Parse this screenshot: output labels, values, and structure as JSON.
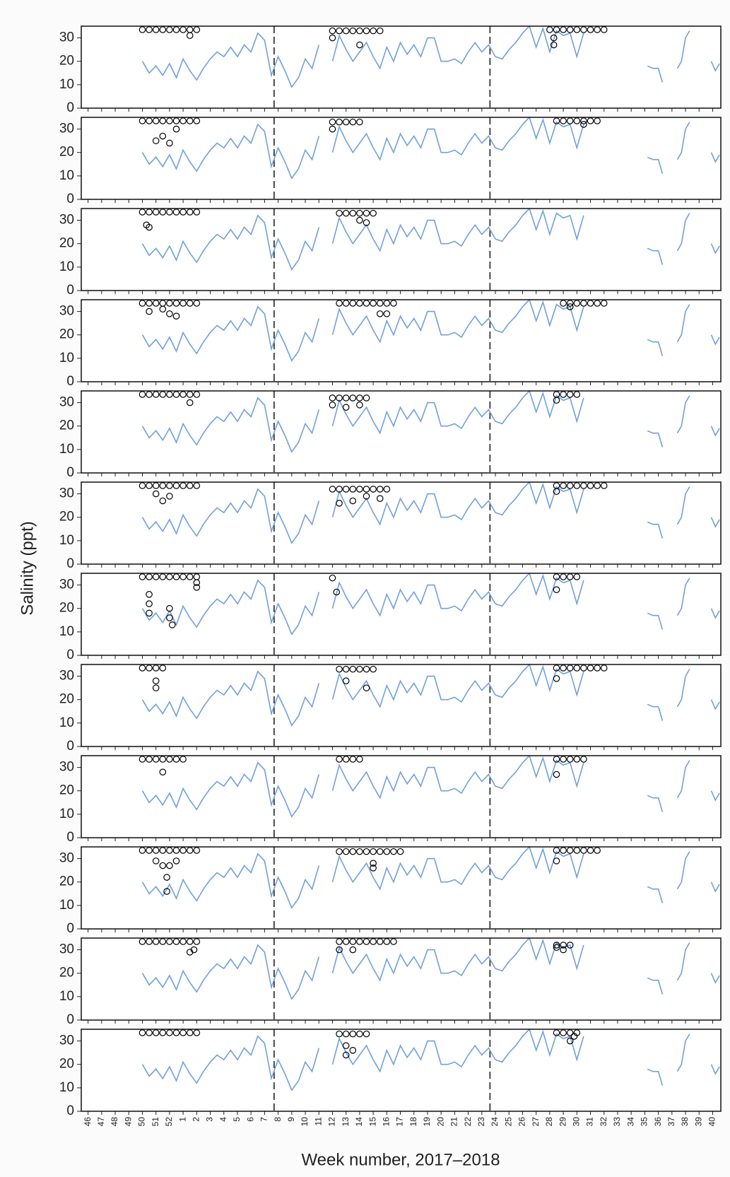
{
  "chart_data": {
    "type": "line",
    "y_label": "Salinity (ppt)",
    "x_label": "Week number, 2017–2018",
    "xlim": [
      45.5,
      92.6
    ],
    "ylim": [
      0,
      35
    ],
    "yticks": [
      0,
      10,
      20,
      30
    ],
    "xticks": [
      46,
      47,
      48,
      49,
      50,
      51,
      52,
      {
        "value": 53,
        "label": "1"
      },
      {
        "value": 54,
        "label": "2"
      },
      {
        "value": 55,
        "label": "3"
      },
      {
        "value": 56,
        "label": "4"
      },
      {
        "value": 57,
        "label": "5"
      },
      {
        "value": 58,
        "label": "6"
      },
      {
        "value": 59,
        "label": "7"
      },
      {
        "value": 60,
        "label": "8"
      },
      {
        "value": 61,
        "label": "9"
      },
      {
        "value": 62,
        "label": "10"
      },
      {
        "value": 63,
        "label": "11"
      },
      {
        "value": 64,
        "label": "12"
      },
      {
        "value": 65,
        "label": "13"
      },
      {
        "value": 66,
        "label": "14"
      },
      {
        "value": 67,
        "label": "15"
      },
      {
        "value": 68,
        "label": "16"
      },
      {
        "value": 69,
        "label": "17"
      },
      {
        "value": 70,
        "label": "18"
      },
      {
        "value": 71,
        "label": "19"
      },
      {
        "value": 72,
        "label": "20"
      },
      {
        "value": 73,
        "label": "21"
      },
      {
        "value": 74,
        "label": "22"
      },
      {
        "value": 75,
        "label": "23"
      },
      {
        "value": 76,
        "label": "24"
      },
      {
        "value": 77,
        "label": "25"
      },
      {
        "value": 78,
        "label": "26"
      },
      {
        "value": 79,
        "label": "27"
      },
      {
        "value": 80,
        "label": "28"
      },
      {
        "value": 81,
        "label": "29"
      },
      {
        "value": 82,
        "label": "30"
      },
      {
        "value": 83,
        "label": "31"
      },
      {
        "value": 84,
        "label": "32"
      },
      {
        "value": 85,
        "label": "33"
      },
      {
        "value": 86,
        "label": "34"
      },
      {
        "value": 87,
        "label": "35"
      },
      {
        "value": 88,
        "label": "36"
      },
      {
        "value": 89,
        "label": "37"
      },
      {
        "value": 90,
        "label": "38"
      },
      {
        "value": 91,
        "label": "39"
      },
      {
        "value": 92,
        "label": "40"
      }
    ],
    "reference_lines": [
      59.7,
      75.6
    ],
    "line": {
      "color": "#6fa0de",
      "x": [
        50,
        50.5,
        51,
        51.5,
        52,
        52.5,
        53,
        53.5,
        54,
        54.5,
        55,
        55.5,
        56,
        56.5,
        57,
        57.5,
        58,
        58.5,
        59,
        59.5,
        60,
        60.5,
        61,
        61.5,
        62,
        62.5,
        63,
        63.5,
        64,
        64.5,
        65,
        65.5,
        66,
        66.5,
        67,
        67.5,
        68,
        68.5,
        69,
        69.5,
        70,
        70.5,
        71,
        71.5,
        72,
        72.5,
        73,
        73.5,
        74,
        74.5,
        75,
        75.5,
        76,
        76.5,
        77,
        77.5,
        78,
        78.5,
        79,
        79.5,
        80,
        80.5,
        81,
        81.5,
        82,
        82.5,
        83,
        87.2,
        87.6,
        88,
        88.3,
        88.8,
        89.4,
        89.7,
        90,
        90.3,
        91,
        91.9,
        92.2,
        92.5
      ],
      "values": [
        20,
        15,
        18,
        14,
        19,
        13,
        21,
        16,
        12,
        17,
        21,
        24,
        22,
        26,
        22,
        27,
        24,
        32,
        29,
        14,
        22,
        16,
        9,
        13,
        21,
        17,
        27,
        null,
        20,
        31,
        25,
        20,
        24,
        28,
        22,
        17,
        26,
        20,
        28,
        23,
        27,
        22,
        30,
        30,
        20,
        20,
        21,
        19,
        24,
        28,
        24,
        27,
        22,
        21,
        25,
        28,
        32,
        35,
        26,
        34,
        24,
        33,
        31,
        32,
        22,
        32,
        null,
        18,
        17,
        17,
        11,
        null,
        17,
        20,
        30,
        33,
        null,
        20,
        16,
        19
      ]
    },
    "point_color": "#000000",
    "panels": [
      {
        "x": [
          50,
          50.5,
          51,
          51.5,
          52,
          52.5,
          53,
          53.5,
          54,
          53.5,
          64,
          64.5,
          65,
          65.5,
          66,
          66.5,
          67,
          67.5,
          64,
          66,
          80,
          80.5,
          81,
          81.5,
          82,
          82.5,
          83,
          83.5,
          84,
          80.3,
          80.3
        ],
        "y": [
          33.5,
          33.5,
          33.5,
          33.5,
          33.5,
          33.5,
          33.5,
          33.5,
          33.5,
          31,
          33,
          33,
          33,
          33,
          33,
          33,
          33,
          33,
          30,
          27,
          33.5,
          33.5,
          33.5,
          33.5,
          33.5,
          33.5,
          33.5,
          33.5,
          33.5,
          27,
          30
        ]
      },
      {
        "x": [
          50,
          50.5,
          51,
          51.5,
          52,
          52.5,
          53,
          53.5,
          54,
          51,
          51.5,
          52,
          52.5,
          64,
          64.5,
          65,
          65.5,
          66,
          64,
          80.5,
          81,
          81.5,
          82,
          82.5,
          83,
          83.5,
          82.5
        ],
        "y": [
          33.5,
          33.5,
          33.5,
          33.5,
          33.5,
          33.5,
          33.5,
          33.5,
          33.5,
          25,
          27,
          24,
          30,
          33,
          33,
          33,
          33,
          33,
          30,
          33.5,
          33.5,
          33.5,
          33.5,
          33.5,
          33.5,
          33.5,
          32
        ]
      },
      {
        "x": [
          50,
          50.5,
          51,
          51.5,
          52,
          52.5,
          53,
          53.5,
          54,
          50.3,
          50.5,
          64.5,
          65,
          65.5,
          66,
          66.5,
          67,
          66,
          66.5
        ],
        "y": [
          33.5,
          33.5,
          33.5,
          33.5,
          33.5,
          33.5,
          33.5,
          33.5,
          33.5,
          28,
          27,
          33,
          33,
          33,
          33,
          33,
          33,
          30,
          29
        ]
      },
      {
        "x": [
          50,
          50.5,
          51,
          51.5,
          52,
          52.5,
          53,
          53.5,
          54,
          50.5,
          51.5,
          52,
          52.5,
          64.5,
          65,
          65.5,
          66,
          66.5,
          67,
          67.5,
          68,
          68.5,
          67.5,
          68,
          81,
          81.5,
          82,
          82.5,
          83,
          83.5,
          84,
          81.5
        ],
        "y": [
          33.5,
          33.5,
          33.5,
          33.5,
          33.5,
          33.5,
          33.5,
          33.5,
          33.5,
          30,
          31,
          29,
          28,
          33.5,
          33.5,
          33.5,
          33.5,
          33.5,
          33.5,
          33.5,
          33.5,
          33.5,
          29,
          29,
          33.5,
          33.5,
          33.5,
          33.5,
          33.5,
          33.5,
          33.5,
          32
        ]
      },
      {
        "x": [
          50,
          50.5,
          51,
          51.5,
          52,
          52.5,
          53,
          53.5,
          54,
          53.5,
          64,
          64.5,
          65,
          65.5,
          66,
          66.5,
          64,
          65,
          66,
          80.5,
          81,
          81.5,
          82,
          80.5
        ],
        "y": [
          33.5,
          33.5,
          33.5,
          33.5,
          33.5,
          33.5,
          33.5,
          33.5,
          33.5,
          30,
          32,
          32,
          32,
          32,
          32,
          32,
          29,
          28,
          29,
          33.5,
          33.5,
          33.5,
          33.5,
          31
        ]
      },
      {
        "x": [
          50,
          50.5,
          51,
          51.5,
          52,
          52.5,
          53,
          53.5,
          54,
          51,
          51.5,
          52,
          64,
          64.5,
          65,
          65.5,
          66,
          66.5,
          67,
          67.5,
          68,
          64.5,
          65.5,
          66.5,
          67.5,
          80.5,
          81,
          81.5,
          82,
          82.5,
          83,
          83.5,
          84,
          80.5
        ],
        "y": [
          33.5,
          33.5,
          33.5,
          33.5,
          33.5,
          33.5,
          33.5,
          33.5,
          33.5,
          30,
          27,
          29,
          32,
          32,
          32,
          32,
          32,
          32,
          32,
          32,
          32,
          26,
          27,
          29,
          28,
          33.5,
          33.5,
          33.5,
          33.5,
          33.5,
          33.5,
          33.5,
          33.5,
          31
        ]
      },
      {
        "x": [
          50,
          50.5,
          51,
          51.5,
          52,
          52.5,
          53,
          53.5,
          54,
          50.5,
          50.5,
          50.5,
          52,
          52,
          52.2,
          54,
          54,
          64,
          64.3,
          80.5,
          81,
          81.5,
          82,
          80.5
        ],
        "y": [
          33.5,
          33.5,
          33.5,
          33.5,
          33.5,
          33.5,
          33.5,
          33.5,
          33.5,
          26,
          22,
          18,
          20,
          16,
          13,
          31,
          29,
          33,
          27,
          33.5,
          33.5,
          33.5,
          33.5,
          28
        ]
      },
      {
        "x": [
          50,
          50.5,
          51,
          51.5,
          51,
          51,
          64.5,
          65,
          65.5,
          66,
          66.5,
          67,
          65,
          66.5,
          80.5,
          81,
          81.5,
          82,
          82.5,
          83,
          83.5,
          84,
          80.5
        ],
        "y": [
          33.5,
          33.5,
          33.5,
          33.5,
          25,
          28,
          33,
          33,
          33,
          33,
          33,
          33,
          28,
          25,
          33.5,
          33.5,
          33.5,
          33.5,
          33.5,
          33.5,
          33.5,
          33.5,
          29
        ]
      },
      {
        "x": [
          50,
          50.5,
          51,
          51.5,
          52,
          52.5,
          53,
          51.5,
          64.5,
          65,
          65.5,
          66,
          80.5,
          81,
          81.5,
          82,
          82.5,
          80.5
        ],
        "y": [
          33.5,
          33.5,
          33.5,
          33.5,
          33.5,
          33.5,
          33.5,
          28,
          33.5,
          33.5,
          33.5,
          33.5,
          33.5,
          33.5,
          33.5,
          33.5,
          33.5,
          27
        ]
      },
      {
        "x": [
          50,
          50.5,
          51,
          51.5,
          52,
          52.5,
          53,
          53.5,
          54,
          51,
          51.5,
          52,
          52.5,
          51.8,
          51.8,
          64.5,
          65,
          65.5,
          66,
          66.5,
          67,
          67.5,
          68,
          68.5,
          69,
          67,
          67,
          80.5,
          81,
          81.5,
          82,
          82.5,
          83,
          83.5,
          80.5
        ],
        "y": [
          33.5,
          33.5,
          33.5,
          33.5,
          33.5,
          33.5,
          33.5,
          33.5,
          33.5,
          29,
          27,
          27,
          29,
          16,
          22,
          33,
          33,
          33,
          33,
          33,
          33,
          33,
          33,
          33,
          33,
          28,
          26,
          33.5,
          33.5,
          33.5,
          33.5,
          33.5,
          33.5,
          33.5,
          29
        ]
      },
      {
        "x": [
          50,
          50.5,
          51,
          51.5,
          52,
          52.5,
          53,
          53.5,
          54,
          53.5,
          53.8,
          64.5,
          65,
          65.5,
          66,
          66.5,
          67,
          67.5,
          68,
          68.5,
          64.5,
          65.5,
          80.5,
          81,
          81.5,
          80.5,
          81
        ],
        "y": [
          33.5,
          33.5,
          33.5,
          33.5,
          33.5,
          33.5,
          33.5,
          33.5,
          33.5,
          29,
          30,
          33.5,
          33.5,
          33.5,
          33.5,
          33.5,
          33.5,
          33.5,
          33.5,
          33.5,
          30,
          30,
          32,
          32,
          32,
          31,
          30
        ]
      },
      {
        "x": [
          50,
          50.5,
          51,
          51.5,
          52,
          52.5,
          53,
          53.5,
          54,
          64.5,
          65,
          65.5,
          66,
          66.5,
          65,
          65,
          65.5,
          80.5,
          81,
          81.5,
          82,
          81.5,
          81.8
        ],
        "y": [
          33.5,
          33.5,
          33.5,
          33.5,
          33.5,
          33.5,
          33.5,
          33.5,
          33.5,
          33,
          33,
          33,
          33,
          33,
          28,
          24,
          26,
          33.5,
          33.5,
          33.5,
          33.5,
          30,
          32
        ]
      }
    ]
  }
}
